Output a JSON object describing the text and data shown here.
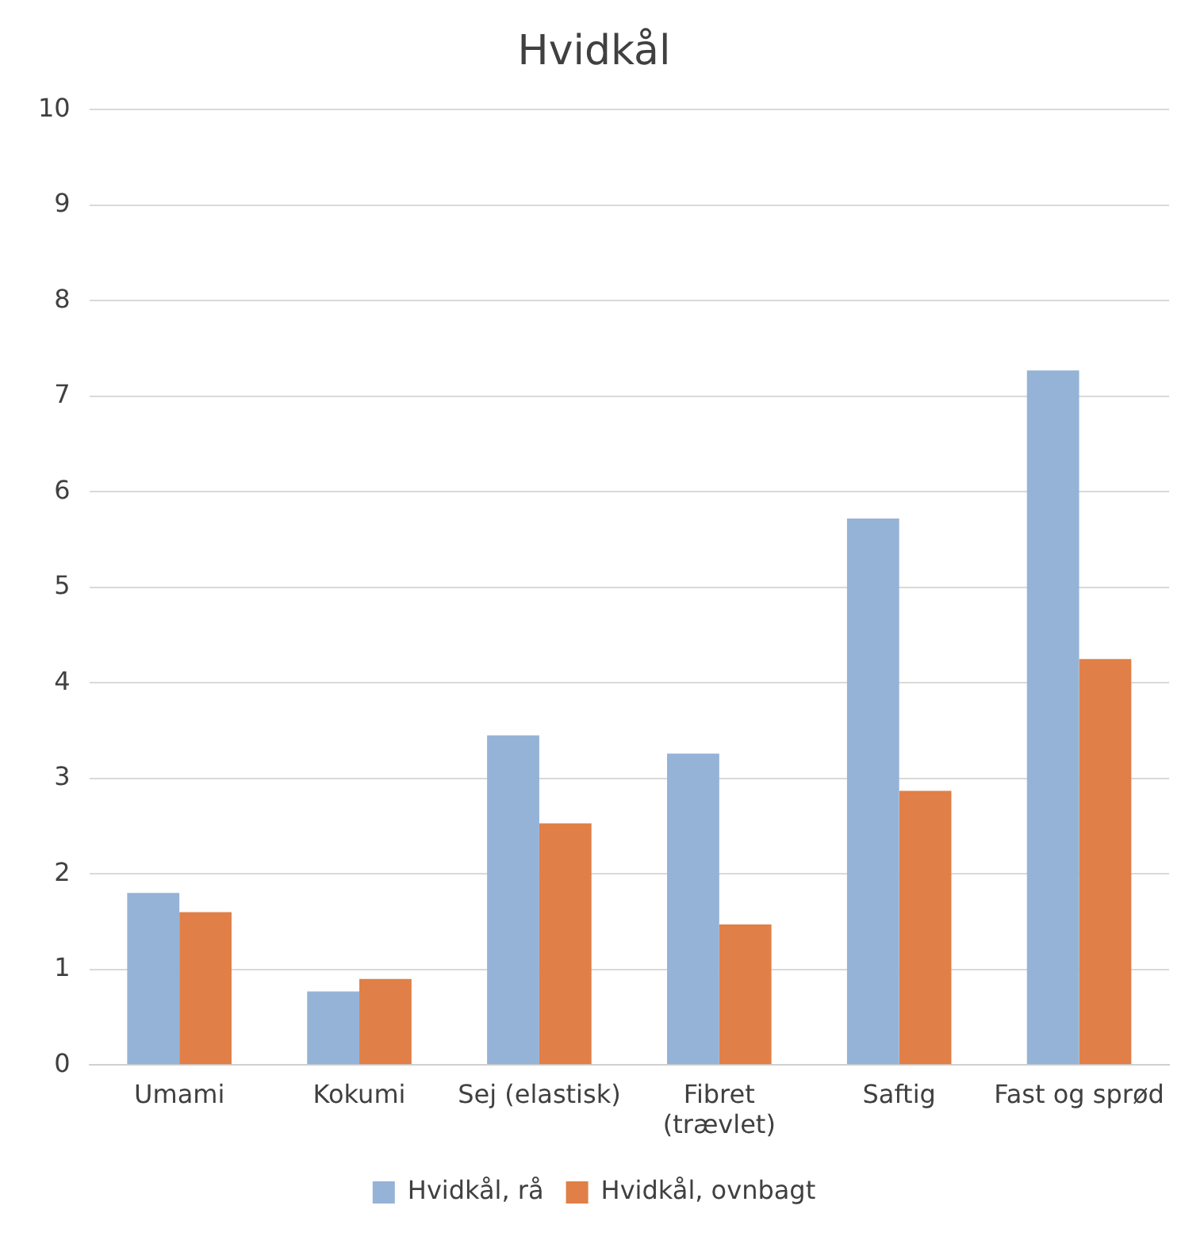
{
  "chart_data": {
    "type": "bar",
    "title": "Hvidkål",
    "categories": [
      "Umami",
      "Kokumi",
      "Sej (elastisk)",
      "Fibret (trævlet)",
      "Saftig",
      "Fast og sprød"
    ],
    "series": [
      {
        "name": "Hvidkål, rå",
        "color": "#95b3d7",
        "values": [
          1.8,
          0.77,
          3.45,
          3.26,
          5.72,
          7.27
        ]
      },
      {
        "name": "Hvidkål, ovnbagt",
        "color": "#e07f47",
        "values": [
          1.6,
          0.9,
          2.53,
          1.47,
          2.87,
          4.25
        ]
      }
    ],
    "ylim": [
      0,
      10
    ],
    "yticks": [
      0,
      1,
      2,
      3,
      4,
      5,
      6,
      7,
      8,
      9,
      10
    ],
    "grid": "y",
    "legend": "bottom"
  }
}
